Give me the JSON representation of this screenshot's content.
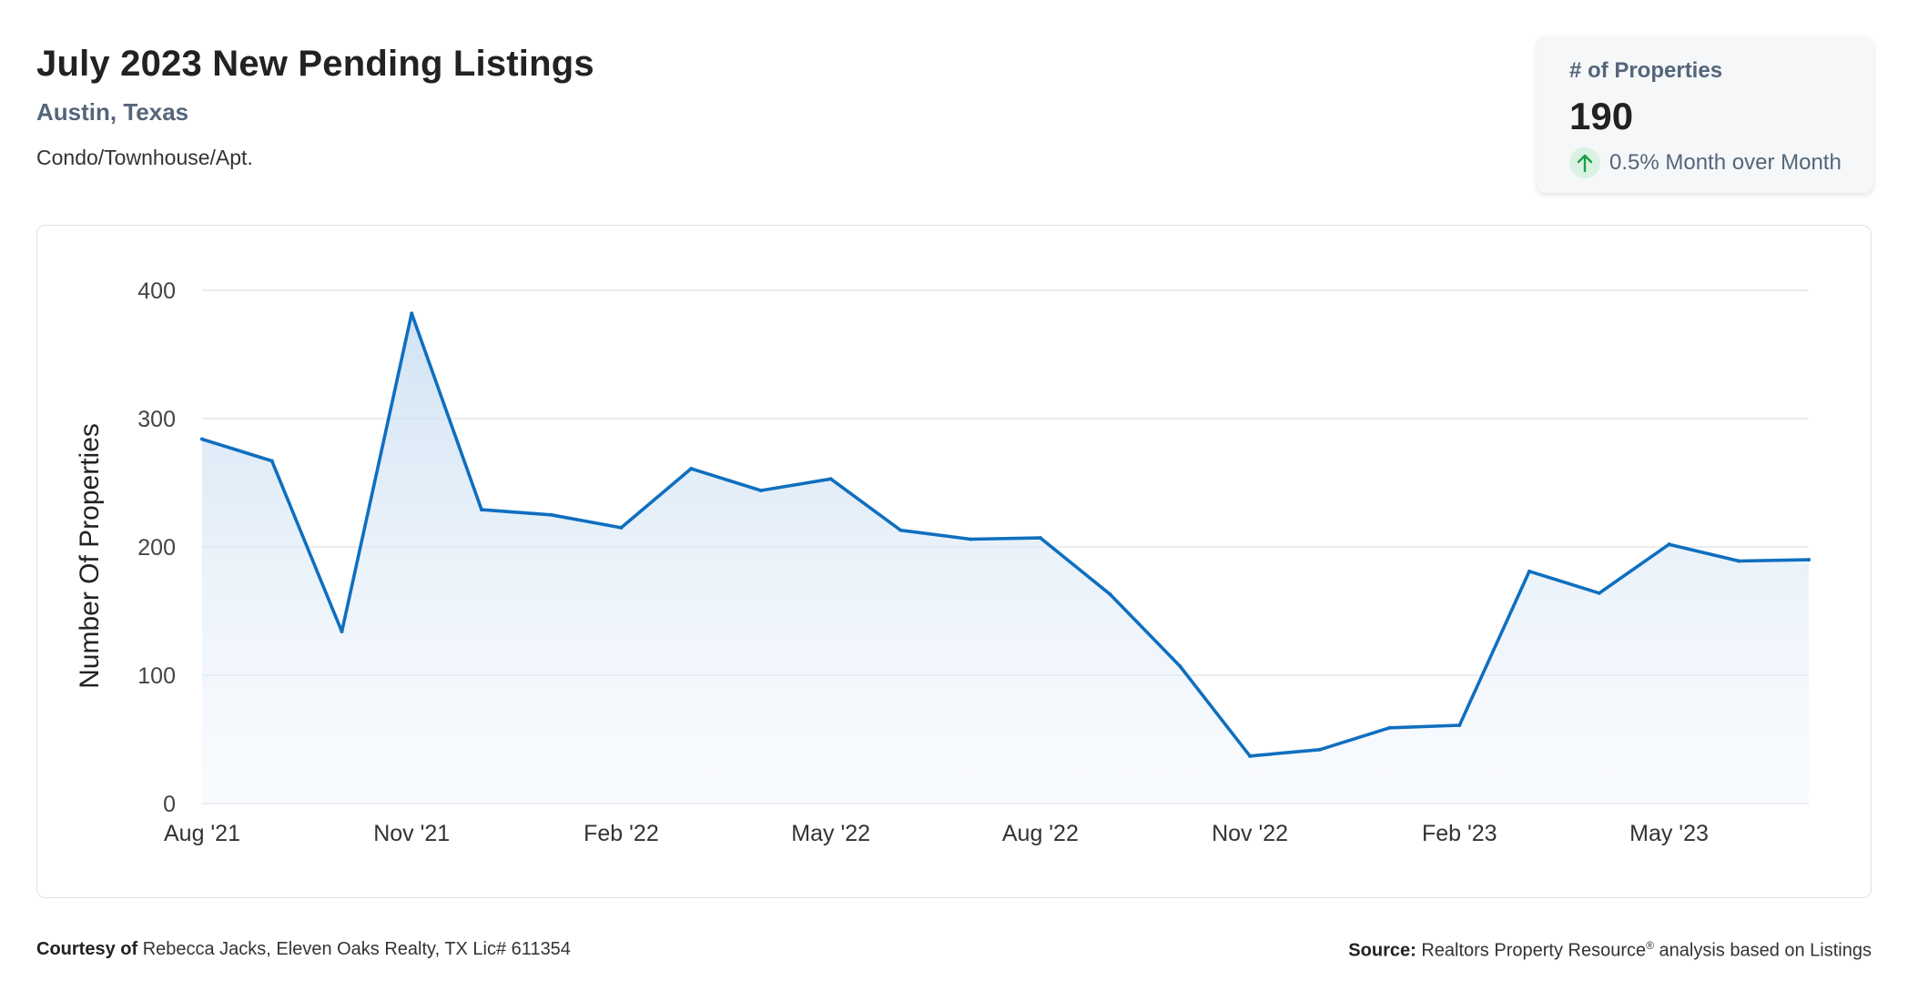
{
  "header": {
    "title": "July 2023 New Pending Listings",
    "location": "Austin, Texas",
    "property_type": "Condo/Townhouse/Apt."
  },
  "kpi": {
    "label": "# of Properties",
    "value": "190",
    "change": "0.5% Month over Month",
    "trend_icon": "arrow-up-icon",
    "trend_color": "#1e9e4a"
  },
  "footer": {
    "courtesy_label": "Courtesy of",
    "courtesy_text": "Rebecca Jacks, Eleven Oaks Realty, TX Lic# 611354",
    "source_label": "Source:",
    "source_text_a": "Realtors Property Resource",
    "source_sup": "®",
    "source_text_b": "analysis based on Listings"
  },
  "colors": {
    "line": "#0f6fbf",
    "area_top": "#cfe2f3",
    "grid": "#e3e6ea"
  },
  "chart_data": {
    "type": "area",
    "title": "",
    "xlabel": "",
    "ylabel": "Number Of Properties",
    "ylim": [
      0,
      400
    ],
    "yticks": [
      0,
      100,
      200,
      300,
      400
    ],
    "grid": true,
    "x": [
      "Aug '21",
      "Sep '21",
      "Oct '21",
      "Nov '21",
      "Dec '21",
      "Jan '22",
      "Feb '22",
      "Mar '22",
      "Apr '22",
      "May '22",
      "Jun '22",
      "Jul '22",
      "Aug '22",
      "Sep '22",
      "Oct '22",
      "Nov '22",
      "Dec '22",
      "Jan '23",
      "Feb '23",
      "Mar '23",
      "Apr '23",
      "May '23",
      "Jun '23",
      "Jul '23"
    ],
    "xtick_labels": [
      "Aug '21",
      "Nov '21",
      "Feb '22",
      "May '22",
      "Aug '22",
      "Nov '22",
      "Feb '23",
      "May '23"
    ],
    "series": [
      {
        "values": [
          284,
          267,
          134,
          382,
          229,
          225,
          215,
          261,
          244,
          253,
          213,
          206,
          207,
          163,
          107,
          37,
          42,
          59,
          61,
          181,
          164,
          202,
          189,
          190
        ]
      }
    ]
  }
}
